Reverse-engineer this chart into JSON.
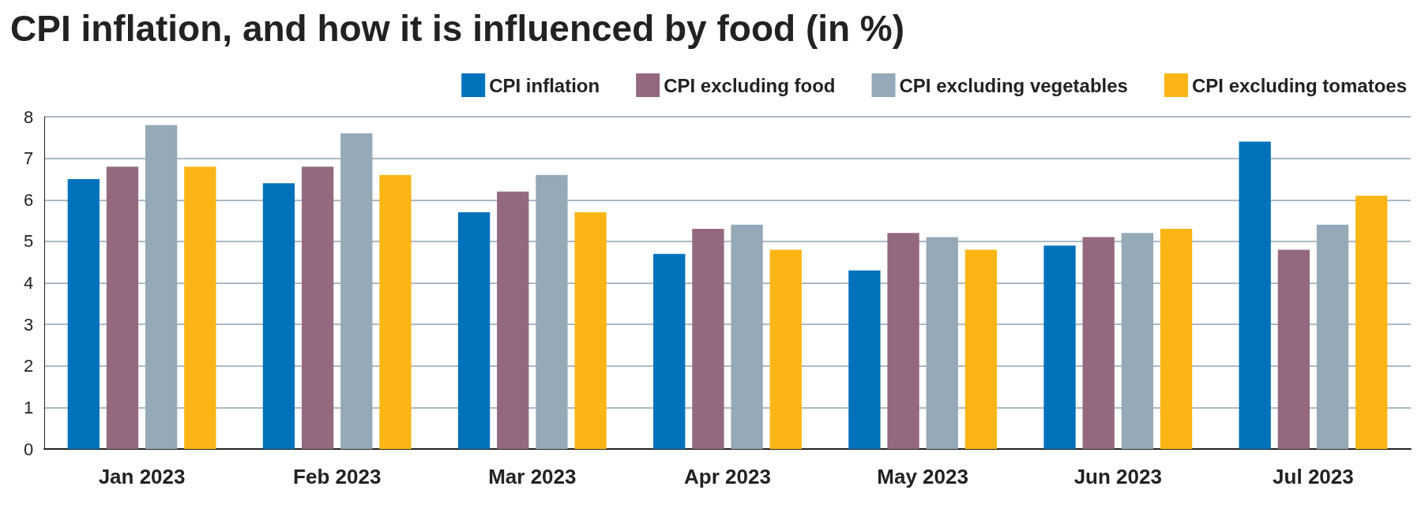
{
  "chart_data": {
    "type": "bar",
    "title": "CPI inflation, and how it is influenced by food (in %)",
    "categories": [
      "Jan 2023",
      "Feb 2023",
      "Mar 2023",
      "Apr 2023",
      "May 2023",
      "Jun 2023",
      "Jul 2023"
    ],
    "series": [
      {
        "name": "CPI inflation",
        "color": "#0072bc",
        "values": [
          6.5,
          6.4,
          5.7,
          4.7,
          4.3,
          4.9,
          7.4
        ]
      },
      {
        "name": "CPI excluding food",
        "color": "#94697f",
        "values": [
          6.8,
          6.8,
          6.2,
          5.3,
          5.2,
          5.1,
          4.8
        ]
      },
      {
        "name": "CPI excluding vegetables",
        "color": "#95a9b6",
        "values": [
          7.8,
          7.6,
          6.6,
          5.4,
          5.1,
          5.2,
          5.4
        ]
      },
      {
        "name": "CPI excluding tomatoes",
        "color": "#fbb615",
        "values": [
          6.8,
          6.6,
          5.7,
          4.8,
          4.8,
          5.3,
          6.1
        ]
      }
    ],
    "ylim": [
      0,
      8
    ],
    "yticks": [
      0,
      1,
      2,
      3,
      4,
      5,
      6,
      7,
      8
    ],
    "grid": "y",
    "legend": "top right"
  }
}
